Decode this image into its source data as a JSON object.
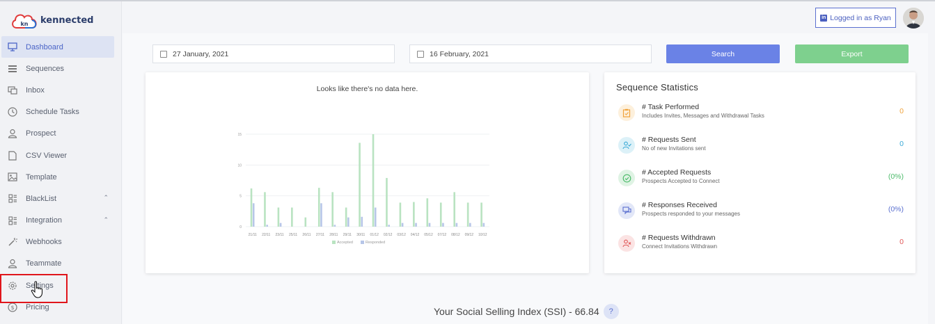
{
  "app": {
    "logo_mark": "kn",
    "logo_text": "kennected"
  },
  "header": {
    "login_label": "Logged in as Ryan",
    "linkedin_glyph": "in"
  },
  "sidebar": {
    "items": [
      {
        "label": "Dashboard",
        "icon": "monitor-icon",
        "active": true
      },
      {
        "label": "Sequences",
        "icon": "list-icon"
      },
      {
        "label": "Inbox",
        "icon": "inbox-icon"
      },
      {
        "label": "Schedule Tasks",
        "icon": "clock-icon"
      },
      {
        "label": "Prospect",
        "icon": "user-icon"
      },
      {
        "label": "CSV Viewer",
        "icon": "file-icon"
      },
      {
        "label": "Template",
        "icon": "template-icon"
      },
      {
        "label": "BlackList",
        "icon": "grid-icon",
        "expandable": true
      },
      {
        "label": "Integration",
        "icon": "grid-icon",
        "expandable": true
      },
      {
        "label": "Webhooks",
        "icon": "wand-icon"
      },
      {
        "label": "Teammate",
        "icon": "user-icon"
      },
      {
        "label": "Settings",
        "icon": "gear-icon",
        "highlighted": true
      },
      {
        "label": "Pricing",
        "icon": "dollar-icon"
      }
    ]
  },
  "filters": {
    "start_date": "27 January, 2021",
    "end_date": "16 February, 2021",
    "search_label": "Search",
    "export_label": "Export"
  },
  "chart_card": {
    "empty_message": "Looks like there's no data here."
  },
  "chart_data": {
    "type": "bar",
    "categories": [
      "21/11",
      "22/11",
      "23/11",
      "25/11",
      "26/11",
      "27/11",
      "28/11",
      "29/11",
      "30/11",
      "01/12",
      "02/12",
      "03/12",
      "04/12",
      "05/12",
      "07/12",
      "08/12",
      "09/12",
      "10/12"
    ],
    "y_ticks": [
      "0",
      "5",
      "10",
      "15"
    ],
    "ylim": [
      0,
      15
    ],
    "series": [
      {
        "name": "Accepted",
        "color": "#b9e3c1",
        "values": [
          6.2,
          5.6,
          3.1,
          3.1,
          1.5,
          6.3,
          5.6,
          3.1,
          13.6,
          15,
          7.9,
          3.9,
          4.0,
          4.6,
          3.9,
          5.6,
          3.9,
          3.9
        ]
      },
      {
        "name": "Responded",
        "color": "#b7c6e8",
        "values": [
          3.8,
          0.3,
          0.6,
          0,
          0,
          3.8,
          0.3,
          1.5,
          1.6,
          3.1,
          0.3,
          0.6,
          0.6,
          0.6,
          0.6,
          0.6,
          0.6,
          0.6
        ]
      }
    ],
    "legend_position": "bottom"
  },
  "stats": {
    "title": "Sequence Statistics",
    "items": [
      {
        "title": "# Task Performed",
        "subtitle": "Includes Invites, Messages and Withdrawal Tasks",
        "value": "0",
        "color": "#f0a23a",
        "bg": "#fdf0dc",
        "icon": "clipboard-icon"
      },
      {
        "title": "# Requests Sent",
        "subtitle": "No of new Invitations sent",
        "value": "0",
        "color": "#3aa9d6",
        "bg": "#dcf1f8",
        "icon": "user-check-icon"
      },
      {
        "title": "# Accepted Requests",
        "subtitle": "Prospects Accepted to Connect",
        "value": "(0%)",
        "color": "#4cbb6a",
        "bg": "#dff3e4",
        "icon": "check-circle-icon"
      },
      {
        "title": "# Responses Received",
        "subtitle": "Prospects responded to your messages",
        "value": "(0%)",
        "color": "#5a6fcf",
        "bg": "#e2e7f8",
        "icon": "chat-icon"
      },
      {
        "title": "# Requests Withdrawn",
        "subtitle": "Connect Invitations Withdrawn",
        "value": "0",
        "color": "#e05555",
        "bg": "#fbe3e3",
        "icon": "user-x-icon"
      }
    ]
  },
  "ssi": {
    "label": "Your Social Selling Index (SSI) - 66.84",
    "help": "?"
  }
}
